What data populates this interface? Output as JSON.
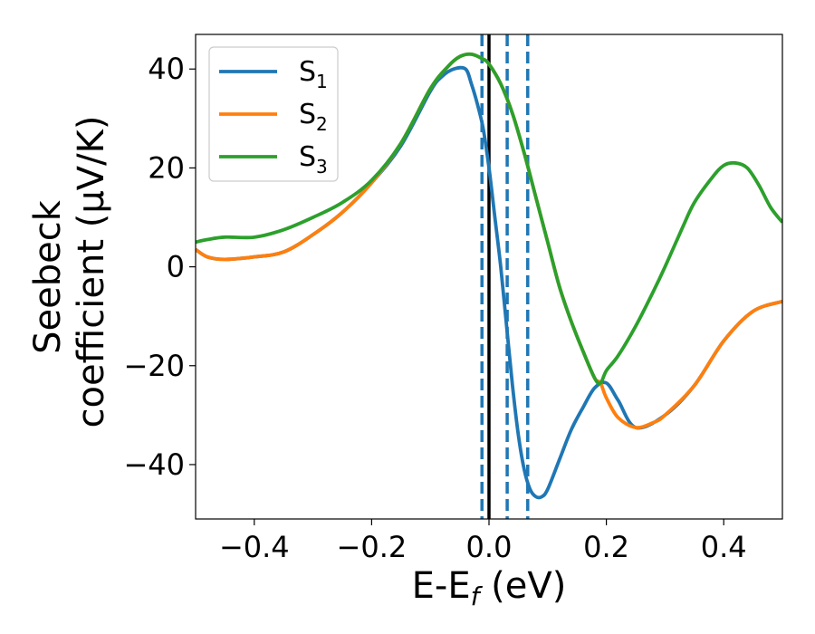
{
  "chart_data": {
    "type": "line",
    "title": "",
    "xlabel": "E-E$_f$ (eV)",
    "xlabel_main": "E-E",
    "xlabel_sub": "f",
    "xlabel_tail": " (eV)",
    "ylabel_line1": "Seebeck",
    "ylabel_line2": "coefficient  (μV/K)",
    "xlim": [
      -0.5,
      0.5
    ],
    "ylim": [
      -51,
      47
    ],
    "xticks": [
      -0.4,
      -0.2,
      0.0,
      0.2,
      0.4
    ],
    "xtick_labels": [
      "−0.4",
      "−0.2",
      "0.0",
      "0.2",
      "0.4"
    ],
    "yticks": [
      -40,
      -20,
      0,
      20,
      40
    ],
    "ytick_labels": [
      "−40",
      "−20",
      "0",
      "20",
      "40"
    ],
    "grid": false,
    "legend_position": "top-left",
    "series": [
      {
        "name": "S1",
        "label_main": "S",
        "label_sub": "1",
        "color": "#1f77b4",
        "x": [
          -0.5,
          -0.48,
          -0.45,
          -0.4,
          -0.35,
          -0.3,
          -0.25,
          -0.2,
          -0.15,
          -0.1,
          -0.08,
          -0.06,
          -0.04,
          -0.03,
          -0.02,
          -0.01,
          0.0,
          0.01,
          0.02,
          0.03,
          0.04,
          0.05,
          0.06,
          0.07,
          0.08,
          0.09,
          0.1,
          0.12,
          0.14,
          0.16,
          0.18,
          0.2,
          0.22,
          0.25,
          0.3,
          0.35,
          0.4,
          0.45,
          0.5
        ],
        "y": [
          3.5,
          2.0,
          1.5,
          2.0,
          3.0,
          6.5,
          11.0,
          17.0,
          24.5,
          35.5,
          38.5,
          40.0,
          40.0,
          37.0,
          33.0,
          28.0,
          20.0,
          10.0,
          0.0,
          -12.0,
          -24.0,
          -34.0,
          -41.0,
          -45.0,
          -46.5,
          -46.5,
          -45.0,
          -39.0,
          -33.0,
          -28.5,
          -24.5,
          -23.5,
          -27.0,
          -32.5,
          -30.0,
          -24.0,
          -15.0,
          -9.0,
          -7.0
        ]
      },
      {
        "name": "S2",
        "label_main": "S",
        "label_sub": "2",
        "color": "#ff7f0e",
        "x": [
          -0.5,
          -0.48,
          -0.45,
          -0.4,
          -0.35,
          -0.3,
          -0.25,
          -0.2,
          -0.15,
          -0.1,
          -0.07,
          -0.05,
          -0.03,
          -0.01,
          0.0,
          0.02,
          0.04,
          0.06,
          0.08,
          0.1,
          0.12,
          0.14,
          0.16,
          0.18,
          0.19,
          0.2,
          0.22,
          0.25,
          0.28,
          0.3,
          0.35,
          0.4,
          0.45,
          0.5
        ],
        "y": [
          3.5,
          2.0,
          1.5,
          2.0,
          3.0,
          6.5,
          11.0,
          17.0,
          25.0,
          36.0,
          40.5,
          42.5,
          43.0,
          42.0,
          41.0,
          37.0,
          31.0,
          23.0,
          14.0,
          5.0,
          -4.0,
          -11.0,
          -17.0,
          -22.5,
          -23.5,
          -26.5,
          -30.5,
          -32.5,
          -31.5,
          -30.0,
          -24.0,
          -15.0,
          -9.0,
          -7.0
        ]
      },
      {
        "name": "S3",
        "label_main": "S",
        "label_sub": "3",
        "color": "#2ca02c",
        "x": [
          -0.5,
          -0.48,
          -0.45,
          -0.4,
          -0.35,
          -0.3,
          -0.25,
          -0.2,
          -0.15,
          -0.1,
          -0.07,
          -0.05,
          -0.03,
          -0.01,
          0.0,
          0.02,
          0.04,
          0.06,
          0.08,
          0.1,
          0.12,
          0.14,
          0.16,
          0.18,
          0.19,
          0.2,
          0.22,
          0.25,
          0.28,
          0.3,
          0.33,
          0.35,
          0.38,
          0.4,
          0.42,
          0.44,
          0.46,
          0.48,
          0.5
        ],
        "y": [
          5.0,
          5.5,
          6.0,
          6.0,
          7.5,
          10.0,
          13.0,
          17.5,
          25.0,
          36.0,
          40.5,
          42.5,
          43.0,
          42.0,
          41.0,
          37.0,
          31.0,
          23.0,
          14.0,
          5.0,
          -4.0,
          -11.0,
          -17.0,
          -22.5,
          -23.5,
          -21.0,
          -18.0,
          -12.0,
          -5.0,
          0.0,
          8.0,
          13.0,
          18.0,
          20.5,
          21.0,
          20.0,
          16.5,
          12.0,
          9.0
        ]
      }
    ],
    "vlines": [
      {
        "x": -0.012,
        "style": "dashed",
        "color": "#1f77b4"
      },
      {
        "x": 0.0,
        "style": "solid",
        "color": "#000000"
      },
      {
        "x": 0.031,
        "style": "dashed",
        "color": "#1f77b4"
      },
      {
        "x": 0.066,
        "style": "dashed",
        "color": "#1f77b4"
      }
    ]
  }
}
